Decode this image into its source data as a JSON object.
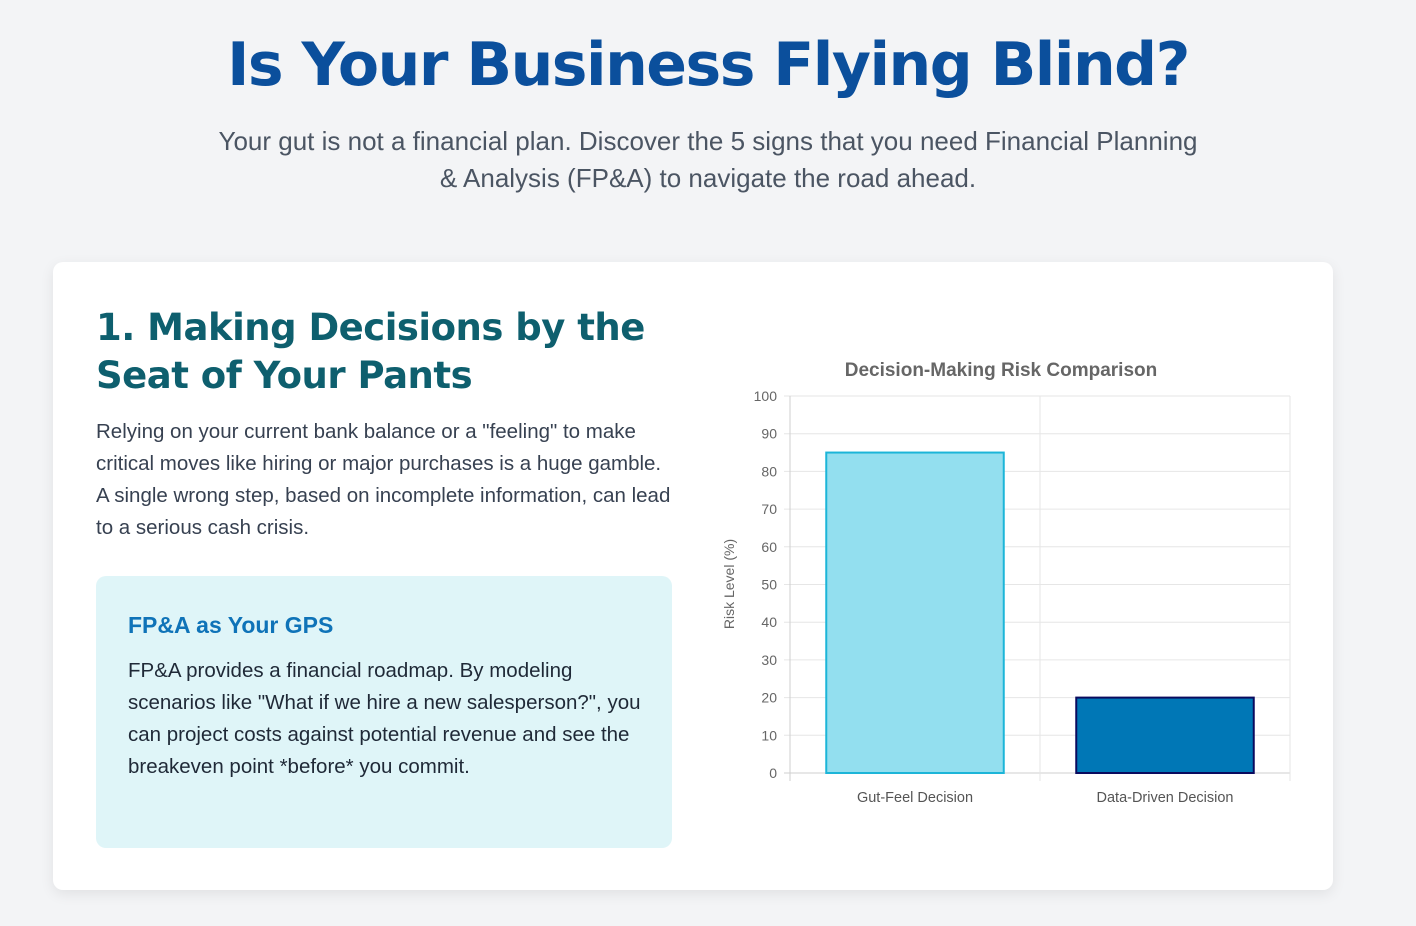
{
  "hero": {
    "title": "Is Your Business Flying Blind?",
    "subtitle": "Your gut is not a financial plan. Discover the 5 signs that you need Financial Planning & Analysis (FP&A) to navigate the road ahead."
  },
  "section": {
    "heading": "1. Making Decisions by the Seat of Your Pants",
    "body": "Relying on your current bank balance or a \"feeling\" to make critical moves like hiring or major purchases is a huge gamble. A single wrong step, based on incomplete information, can lead to a serious cash crisis.",
    "callout": {
      "title": "FP&A as Your GPS",
      "body": "FP&A provides a financial roadmap. By modeling scenarios like \"What if we hire a new salesperson?\", you can project costs against potential revenue and see the breakeven point *before* you commit."
    }
  },
  "colors": {
    "title": "#0b4f9c",
    "heading": "#0e5f6e",
    "callout_bg": "#dff5f8",
    "callout_title": "#0f73b8"
  },
  "chart_data": {
    "type": "bar",
    "title": "Decision-Making Risk Comparison",
    "categories": [
      "Gut-Feel Decision",
      "Data-Driven Decision"
    ],
    "values": [
      85,
      20
    ],
    "xlabel": "",
    "ylabel": "Risk Level (%)",
    "ylim": [
      0,
      100
    ],
    "yticks": [
      0,
      10,
      20,
      30,
      40,
      50,
      60,
      70,
      80,
      90,
      100
    ],
    "grid": true,
    "legend": "none",
    "bar_fill": [
      "#93dfef",
      "#0077b6"
    ],
    "bar_stroke": [
      "#1cb5d8",
      "#0a0a5e"
    ]
  }
}
